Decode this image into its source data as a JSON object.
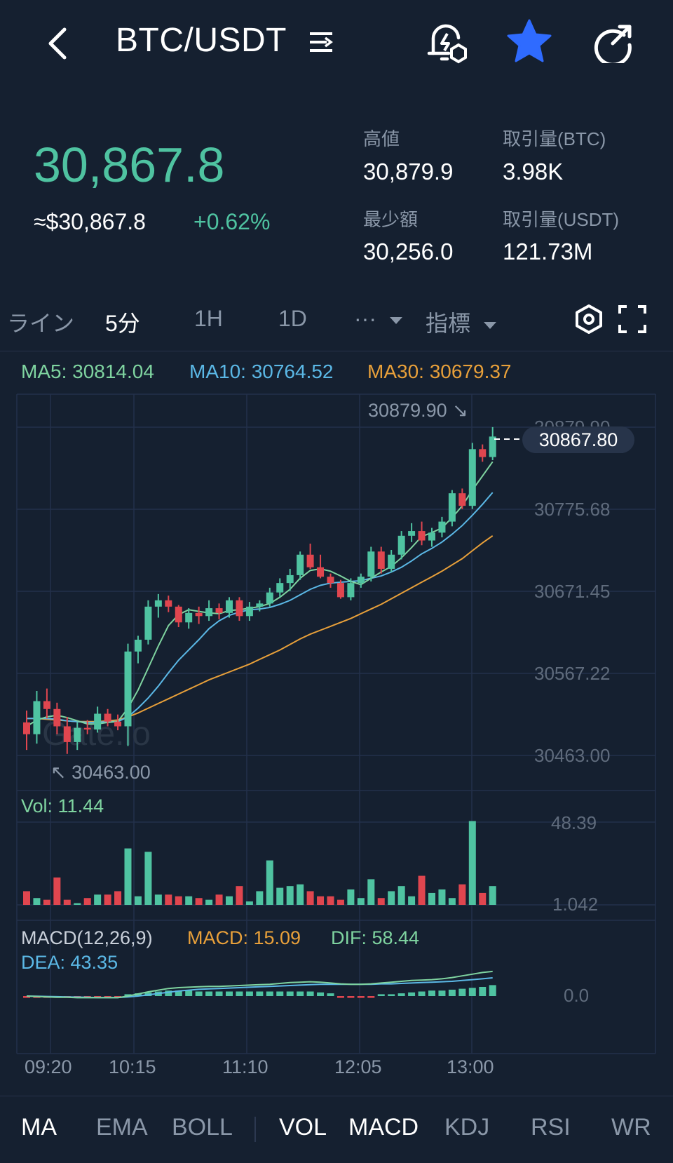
{
  "header": {
    "title": "BTC/USDT"
  },
  "ticker": {
    "last_price": "30,867.8",
    "usd_equiv": "≈$30,867.8",
    "change_pct": "+0.62%",
    "stats": {
      "high_label": "高値",
      "high_value": "30,879.9",
      "low_label": "最少額",
      "low_value": "30,256.0",
      "vol_btc_label": "取引量(BTC)",
      "vol_btc_value": "3.98K",
      "vol_usdt_label": "取引量(USDT)",
      "vol_usdt_value": "121.73M"
    }
  },
  "timeframe_tabs": {
    "line": "ライン",
    "m5": "5分",
    "h1": "1H",
    "d1": "1D",
    "more": "···",
    "indicators": "指標"
  },
  "ma_legend": {
    "ma5": "MA5: 30814.04",
    "ma10": "MA10: 30764.52",
    "ma30": "MA30: 30679.37"
  },
  "colors": {
    "up": "#4fc3a1",
    "down": "#e0464f",
    "ma5": "#7fd4a0",
    "ma10": "#5bb8e6",
    "ma30": "#e8a03a",
    "accent_star": "#2f6bff",
    "background": "#152030"
  },
  "price_axis": {
    "labels": [
      "30879.90",
      "30775.68",
      "30671.45",
      "30567.22",
      "30463.00"
    ],
    "max_marker": "30879.90",
    "min_marker": "30463.00",
    "current": "30867.80"
  },
  "volume": {
    "legend": "Vol: 11.44",
    "axis_max": "48.39",
    "axis_min": "1.042"
  },
  "macd": {
    "title": "MACD(12,26,9)",
    "macd": "MACD: 15.09",
    "dif": "DIF: 58.44",
    "dea": "DEA: 43.35",
    "axis_zero": "0.0"
  },
  "time_axis": [
    "09:20",
    "10:15",
    "11:10",
    "12:05",
    "13:00"
  ],
  "watermark": "Gate.io",
  "bottom_tabs": [
    "MA",
    "EMA",
    "BOLL",
    "VOL",
    "MACD",
    "KDJ",
    "RSI",
    "WR"
  ],
  "icons": [
    "back-arrow-icon",
    "list-toggle-icon",
    "price-alert-icon",
    "star-icon",
    "share-icon",
    "dropdown-caret-icon",
    "settings-hexagon-icon",
    "fullscreen-icon"
  ],
  "chart_data": {
    "type": "candlestick",
    "interval": "5分",
    "x_start": "09:10",
    "x_labels": [
      "09:20",
      "10:15",
      "11:10",
      "12:05",
      "13:00"
    ],
    "price_range": [
      30463.0,
      30879.9
    ],
    "ohlc": [
      [
        30505,
        30520,
        30470,
        30490
      ],
      [
        30490,
        30545,
        30478,
        30532
      ],
      [
        30532,
        30548,
        30510,
        30522
      ],
      [
        30522,
        30530,
        30490,
        30500
      ],
      [
        30500,
        30512,
        30465,
        30480
      ],
      [
        30480,
        30505,
        30470,
        30498
      ],
      [
        30498,
        30508,
        30490,
        30496
      ],
      [
        30496,
        30525,
        30492,
        30516
      ],
      [
        30516,
        30522,
        30500,
        30506
      ],
      [
        30506,
        30515,
        30495,
        30500
      ],
      [
        30500,
        30605,
        30475,
        30595
      ],
      [
        30595,
        30615,
        30580,
        30610
      ],
      [
        30610,
        30660,
        30604,
        30652
      ],
      [
        30652,
        30668,
        30638,
        30660
      ],
      [
        30660,
        30666,
        30645,
        30652
      ],
      [
        30652,
        30654,
        30626,
        30632
      ],
      [
        30632,
        30650,
        30624,
        30644
      ],
      [
        30644,
        30652,
        30630,
        30640
      ],
      [
        30640,
        30660,
        30634,
        30650
      ],
      [
        30650,
        30656,
        30636,
        30644
      ],
      [
        30644,
        30664,
        30638,
        30660
      ],
      [
        30660,
        30664,
        30634,
        30640
      ],
      [
        30640,
        30658,
        30634,
        30652
      ],
      [
        30652,
        30660,
        30646,
        30656
      ],
      [
        30656,
        30676,
        30652,
        30670
      ],
      [
        30670,
        30688,
        30664,
        30682
      ],
      [
        30682,
        30700,
        30672,
        30692
      ],
      [
        30692,
        30722,
        30686,
        30718
      ],
      [
        30718,
        30732,
        30700,
        30702
      ],
      [
        30702,
        30718,
        30688,
        30690
      ],
      [
        30690,
        30694,
        30676,
        30682
      ],
      [
        30682,
        30686,
        30662,
        30664
      ],
      [
        30664,
        30688,
        30660,
        30682
      ],
      [
        30682,
        30694,
        30676,
        30690
      ],
      [
        30690,
        30728,
        30684,
        30722
      ],
      [
        30722,
        30728,
        30694,
        30700
      ],
      [
        30700,
        30724,
        30696,
        30718
      ],
      [
        30718,
        30748,
        30712,
        30742
      ],
      [
        30742,
        30758,
        30734,
        30748
      ],
      [
        30748,
        30760,
        30730,
        30736
      ],
      [
        30736,
        30752,
        30728,
        30746
      ],
      [
        30746,
        30766,
        30740,
        30760
      ],
      [
        30760,
        30800,
        30754,
        30796
      ],
      [
        30796,
        30802,
        30776,
        30780
      ],
      [
        30780,
        30860,
        30776,
        30852
      ],
      [
        30852,
        30858,
        30836,
        30842
      ],
      [
        30842,
        30880,
        30838,
        30868
      ]
    ],
    "ma5": [
      30500,
      30508,
      30512,
      30514,
      30511,
      30507,
      30503,
      30503,
      30505,
      30506,
      30523,
      30546,
      30574,
      30602,
      30628,
      30642,
      30648,
      30646,
      30644,
      30643,
      30647,
      30648,
      30650,
      30652,
      30656,
      30664,
      30674,
      30688,
      30698,
      30700,
      30697,
      30691,
      30684,
      30680,
      30688,
      30696,
      30703,
      30714,
      30727,
      30741,
      30746,
      30752,
      30765,
      30780,
      30800,
      30818,
      30836
    ],
    "ma10": [
      30510,
      30510,
      30510,
      30509,
      30507,
      30506,
      30505,
      30505,
      30506,
      30506,
      30512,
      30523,
      30536,
      30551,
      30568,
      30584,
      30597,
      30610,
      30624,
      30634,
      30641,
      30645,
      30648,
      30649,
      30651,
      30655,
      30660,
      30667,
      30674,
      30679,
      30682,
      30683,
      30684,
      30685,
      30688,
      30691,
      30696,
      30702,
      30710,
      30719,
      30726,
      30734,
      30744,
      30755,
      30768,
      30782,
      30797
    ],
    "ma30": [
      30510,
      30510,
      30509,
      30508,
      30507,
      30506,
      30506,
      30506,
      30507,
      30508,
      30512,
      30517,
      30523,
      30529,
      30535,
      30541,
      30547,
      30553,
      30559,
      30564,
      30569,
      30574,
      30579,
      30585,
      30591,
      30597,
      30604,
      30611,
      30617,
      30622,
      30627,
      30632,
      30637,
      30643,
      30649,
      30655,
      30662,
      30669,
      30676,
      30683,
      30690,
      30697,
      30705,
      30713,
      30723,
      30733,
      30742
    ],
    "volume": [
      8,
      4,
      3,
      16,
      3,
      1,
      4,
      6,
      6,
      8,
      33,
      5,
      31,
      6,
      6,
      5,
      5,
      4,
      3,
      6,
      5,
      11,
      2,
      8,
      26,
      10,
      11,
      12,
      8,
      5,
      5,
      3,
      9,
      4,
      15,
      4,
      8,
      11,
      5,
      17,
      7,
      9,
      4,
      12,
      49,
      7,
      11
    ],
    "volume_range": [
      1.042,
      48.39
    ],
    "macd_hist": [
      -1,
      -1,
      -1,
      -1,
      -1,
      -1,
      -1,
      -1,
      -1,
      -1,
      1,
      1.5,
      2,
      2.5,
      3,
      3,
      3,
      2.5,
      2.5,
      2.5,
      2.5,
      2.5,
      2.5,
      2.5,
      2.5,
      2.5,
      2.5,
      2.5,
      2.5,
      2,
      1.5,
      -1,
      -1,
      -1,
      -1,
      1,
      1,
      1.5,
      2,
      2.5,
      3,
      3,
      3.5,
      4,
      4.5,
      5,
      6
    ],
    "dif": [
      0,
      -1,
      -2,
      -3,
      -3,
      -4,
      -4,
      -4,
      -4,
      -4,
      0,
      5,
      10,
      14,
      18,
      20,
      21,
      22,
      23,
      23,
      24,
      25,
      26,
      27,
      28,
      30,
      32,
      33,
      34,
      33,
      31,
      29,
      28,
      28,
      29,
      31,
      33,
      35,
      37,
      38,
      39,
      41,
      44,
      48,
      52,
      56,
      58.44
    ],
    "dea": [
      0,
      -0.5,
      -1,
      -1.5,
      -2,
      -2.5,
      -3,
      -3.5,
      -3.5,
      -3.5,
      -2,
      0,
      3,
      6,
      9,
      12,
      14,
      16,
      17,
      18,
      19,
      20,
      21,
      22,
      23,
      24,
      25,
      26,
      27,
      28,
      28,
      28,
      28,
      28,
      28,
      29,
      29,
      30,
      31,
      32,
      33,
      34,
      35,
      37,
      39,
      41,
      43.35
    ]
  }
}
